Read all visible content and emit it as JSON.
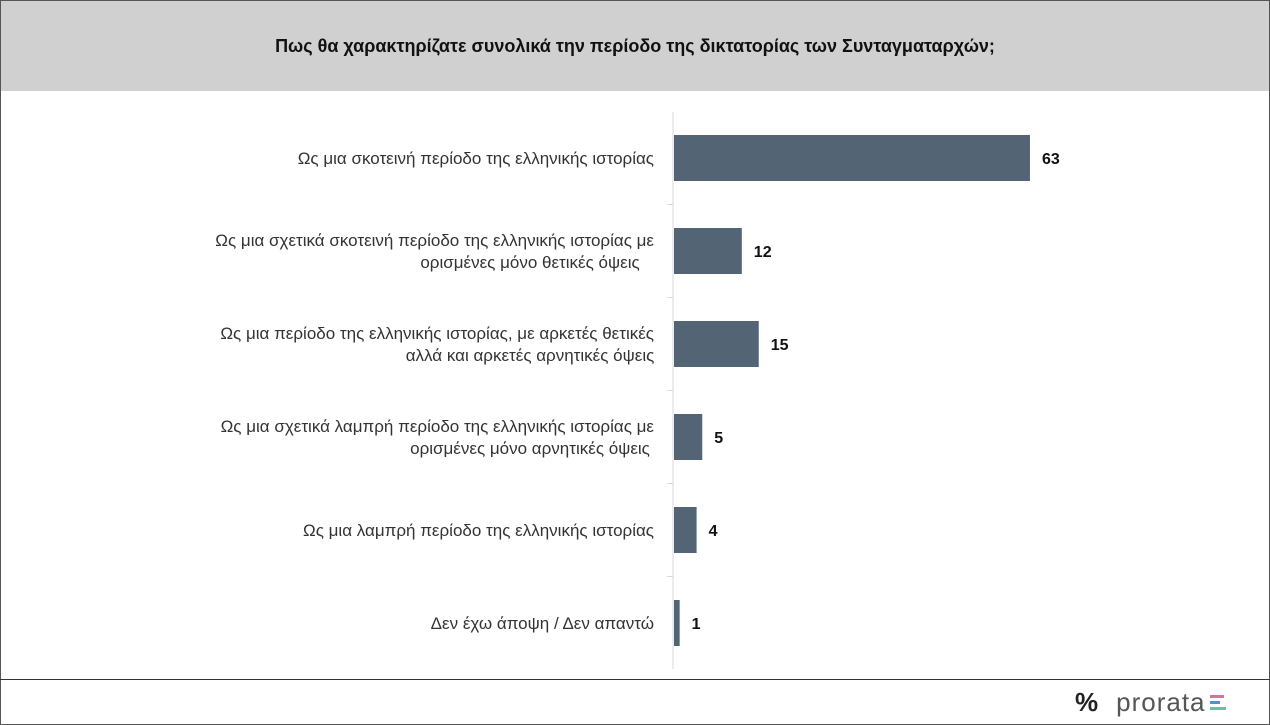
{
  "title": "Πως θα χαρακτηρίζατε συνολικά την περίοδο της δικτατορίας των Συνταγματαρχών;",
  "logo": {
    "symbol": "%",
    "text": "prorata",
    "colors": [
      "#e06ca0",
      "#3a9bd5",
      "#5cc6a6"
    ]
  },
  "chart_data": {
    "type": "bar",
    "orientation": "horizontal",
    "categories": [
      [
        "Ως μια σκοτεινή περίοδο της ελληνικής ιστορίας"
      ],
      [
        "Ως μια σχετικά σκοτεινή περίοδο της ελληνικής ιστορίας με",
        "ορισμένες μόνο θετικές όψεις"
      ],
      [
        "Ως μια περίοδο της ελληνικής ιστορίας, με αρκετές θετικές",
        "αλλά και αρκετές αρνητικές όψεις"
      ],
      [
        "Ως μια σχετικά λαμπρή περίοδο της ελληνικής ιστορίας με",
        "ορισμένες μόνο αρνητικές όψεις"
      ],
      [
        "Ως μια λαμπρή περίοδο της ελληνικής ιστορίας"
      ],
      [
        "Δεν έχω άποψη / Δεν απαντώ"
      ]
    ],
    "values": [
      63,
      12,
      15,
      5,
      4,
      1
    ],
    "xlim": [
      0,
      100
    ],
    "bar_color": "#536475",
    "grid": false
  }
}
